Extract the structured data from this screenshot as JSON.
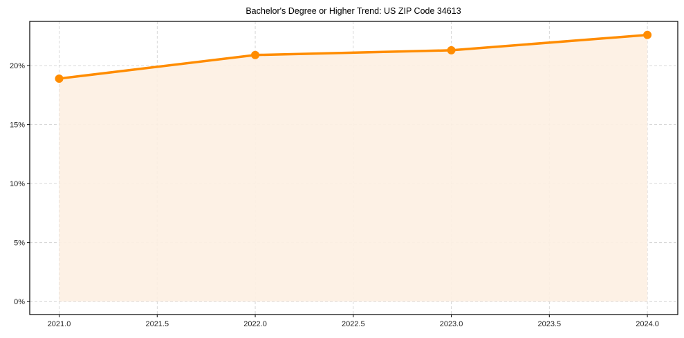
{
  "chart_data": {
    "type": "line",
    "title": "Bachelor's Degree or Higher Trend: US ZIP Code 34613",
    "xlabel": "",
    "ylabel": "",
    "x": [
      2021,
      2022,
      2023,
      2024
    ],
    "series": [
      {
        "name": "Bachelor's Degree or Higher",
        "values": [
          18.9,
          20.9,
          21.3,
          22.6
        ],
        "unit": "%",
        "color": "#ff8c00",
        "fill_color": "#fdf0e2",
        "marker": "circle"
      }
    ],
    "xlim": [
      2020.85,
      2024.155
    ],
    "ylim": [
      -1.1,
      23.75
    ],
    "x_ticks": [
      2021.0,
      2021.5,
      2022.0,
      2022.5,
      2023.0,
      2023.5,
      2024.0
    ],
    "x_tick_labels": [
      "2021.0",
      "2021.5",
      "2022.0",
      "2022.5",
      "2023.0",
      "2023.5",
      "2024.0"
    ],
    "y_ticks": [
      0,
      5,
      10,
      15,
      20
    ],
    "y_tick_labels": [
      "0%",
      "5%",
      "10%",
      "15%",
      "20%"
    ],
    "grid": true,
    "grid_style": "dashed",
    "legend": null
  },
  "colors": {
    "line": "#ff8c00",
    "fill": "#fdf0e2",
    "grid": "#cccccc",
    "axis": "#000000"
  }
}
